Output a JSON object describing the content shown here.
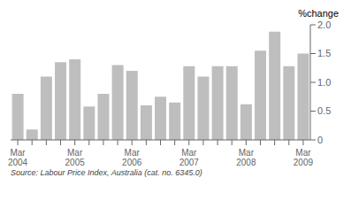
{
  "chart_data": {
    "type": "bar",
    "ylabel": "%change",
    "annotations": [
      "Source: Labour Price Index, Australia (cat.  no.  6345.0)"
    ],
    "categories": [
      "Mar\n2004",
      null,
      null,
      null,
      "Mar\n2005",
      null,
      null,
      null,
      "Mar\n2006",
      null,
      null,
      null,
      "Mar\n2007",
      null,
      null,
      null,
      "Mar\n2008",
      null,
      null,
      null,
      "Mar\n2009"
    ],
    "values": [
      0.8,
      0.18,
      1.1,
      1.35,
      1.4,
      0.58,
      0.8,
      1.3,
      1.2,
      0.6,
      0.75,
      0.65,
      1.28,
      1.1,
      1.28,
      1.28,
      0.62,
      1.55,
      1.88,
      1.28,
      1.5
    ],
    "color": "#bebebe",
    "ylim": [
      0,
      2.0
    ],
    "yticks": [
      0,
      0.5,
      {
        "value": 1.0,
        "label": "1.0"
      },
      {
        "value": 1.5,
        "label": "1.5"
      },
      {
        "value": 2.0,
        "label": "2.0"
      }
    ],
    "grid": false
  }
}
